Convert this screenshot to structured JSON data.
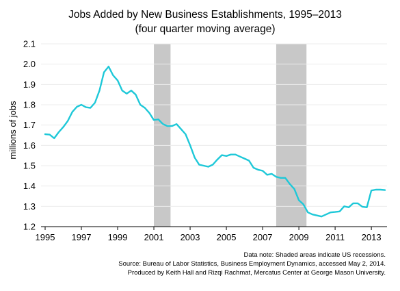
{
  "chart_data": {
    "type": "line",
    "title": "Jobs Added by New Business Establishments, 1995–2013",
    "subtitle": "(four quarter moving average)",
    "ylabel": "millions of jobs",
    "xlabel": "",
    "xlim": [
      1995,
      2013.75
    ],
    "ylim": [
      1.2,
      2.1
    ],
    "x_ticks": [
      "1995",
      "1997",
      "1999",
      "2001",
      "2003",
      "2005",
      "2007",
      "2009",
      "2011",
      "2013"
    ],
    "y_ticks": [
      "1.2",
      "1.3",
      "1.4",
      "1.5",
      "1.6",
      "1.7",
      "1.8",
      "1.9",
      "2.0",
      "2.1"
    ],
    "grid": true,
    "line_color": "#1ec8d8",
    "recession_color": "#c8c8c8",
    "recessions": [
      {
        "start": 2001.0,
        "end": 2001.92
      },
      {
        "start": 2007.75,
        "end": 2009.42
      }
    ],
    "series": [
      {
        "x": [
          1995.0,
          1995.25,
          1995.5,
          1995.75,
          1996.0,
          1996.25,
          1996.5,
          1996.75,
          1997.0,
          1997.25,
          1997.5,
          1997.75,
          1998.0,
          1998.25,
          1998.5,
          1998.75,
          1999.0,
          1999.25,
          1999.5,
          1999.75,
          2000.0,
          2000.25,
          2000.5,
          2000.75,
          2001.0,
          2001.25,
          2001.5,
          2001.75,
          2002.0,
          2002.25,
          2002.5,
          2002.75,
          2003.0,
          2003.25,
          2003.5,
          2003.75,
          2004.0,
          2004.25,
          2004.5,
          2004.75,
          2005.0,
          2005.25,
          2005.5,
          2005.75,
          2006.0,
          2006.25,
          2006.5,
          2006.75,
          2007.0,
          2007.25,
          2007.5,
          2007.75,
          2008.0,
          2008.25,
          2008.5,
          2008.75,
          2009.0,
          2009.25,
          2009.5,
          2009.75,
          2010.0,
          2010.25,
          2010.5,
          2010.75,
          2011.0,
          2011.25,
          2011.5,
          2011.75,
          2012.0,
          2012.25,
          2012.5,
          2012.75,
          2013.0,
          2013.25,
          2013.5,
          2013.75
        ],
        "values": [
          1.655,
          1.653,
          1.635,
          1.665,
          1.69,
          1.72,
          1.765,
          1.79,
          1.8,
          1.788,
          1.785,
          1.81,
          1.87,
          1.96,
          1.988,
          1.945,
          1.92,
          1.87,
          1.855,
          1.87,
          1.85,
          1.8,
          1.785,
          1.76,
          1.725,
          1.728,
          1.705,
          1.695,
          1.695,
          1.705,
          1.68,
          1.655,
          1.6,
          1.54,
          1.505,
          1.5,
          1.495,
          1.505,
          1.53,
          1.552,
          1.548,
          1.555,
          1.555,
          1.545,
          1.535,
          1.525,
          1.49,
          1.48,
          1.475,
          1.455,
          1.46,
          1.445,
          1.44,
          1.44,
          1.41,
          1.385,
          1.33,
          1.31,
          1.27,
          1.26,
          1.255,
          1.25,
          1.26,
          1.27,
          1.272,
          1.275,
          1.3,
          1.295,
          1.315,
          1.315,
          1.298,
          1.295,
          1.378,
          1.382,
          1.382,
          1.38
        ]
      }
    ]
  },
  "notes": [
    "Data note: Shaded areas indicate US recessions.",
    "Source: Bureau of Labor Statistics, Business Employment Dynamics, accessed May 2, 2014.",
    "Produced by Keith Hall and Rizqi Rachmat, Mercatus Center at George Mason University."
  ]
}
